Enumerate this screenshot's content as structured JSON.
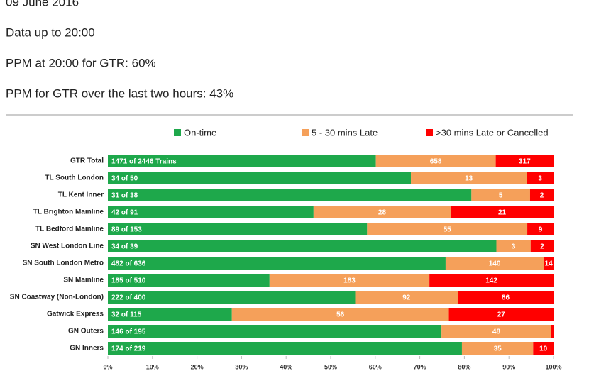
{
  "header": {
    "date": "09 June 2016",
    "data_up_to": "Data up to 20:00",
    "ppm_now": "PPM at 20:00 for GTR: 60%",
    "ppm_two_hours": "PPM for GTR over the last two hours: 43%"
  },
  "chart_data": {
    "type": "bar",
    "orientation": "horizontal",
    "stacked": "percent",
    "categories": [
      "GTR Total",
      "TL South London",
      "TL Kent Inner",
      "TL Brighton Mainline",
      "TL Bedford Mainline",
      "SN West London Line",
      "SN South London Metro",
      "SN Mainline",
      "SN Coastway (Non-London)",
      "Gatwick Express",
      "GN Outers",
      "GN Inners"
    ],
    "series": [
      {
        "name": "On-time",
        "color": "#1ea84b",
        "values": [
          1471,
          34,
          31,
          42,
          89,
          34,
          482,
          185,
          222,
          32,
          146,
          174
        ],
        "value_labels": [
          "1471 of 2446 Trains",
          "34 of 50",
          "31 of 38",
          "42 of 91",
          "89 of 153",
          "34 of 39",
          "482 of 636",
          "185 of 510",
          "222 of 400",
          "32 of 115",
          "146 of 195",
          "174 of 219"
        ]
      },
      {
        "name": "5 - 30 mins Late",
        "color": "#f5a05a",
        "values": [
          658,
          13,
          5,
          28,
          55,
          3,
          140,
          183,
          92,
          56,
          48,
          35
        ]
      },
      {
        "name": ">30 mins Late or Cancelled",
        "color": "#ff0000",
        "values": [
          317,
          3,
          2,
          21,
          9,
          2,
          14,
          142,
          86,
          27,
          1,
          10
        ]
      }
    ],
    "xlim": [
      0,
      100
    ],
    "xticks": [
      {
        "value": 0,
        "label": "0%"
      },
      {
        "value": 10,
        "label": "10%"
      },
      {
        "value": 20,
        "label": "20%"
      },
      {
        "value": 30,
        "label": "30%"
      },
      {
        "value": 40,
        "label": "40%"
      },
      {
        "value": 50,
        "label": "50%"
      },
      {
        "value": 60,
        "label": "60%"
      },
      {
        "value": 70,
        "label": "70%"
      },
      {
        "value": 80,
        "label": "80%"
      },
      {
        "value": 90,
        "label": "90%"
      },
      {
        "value": 100,
        "label": "100%"
      }
    ],
    "legend": "top"
  }
}
